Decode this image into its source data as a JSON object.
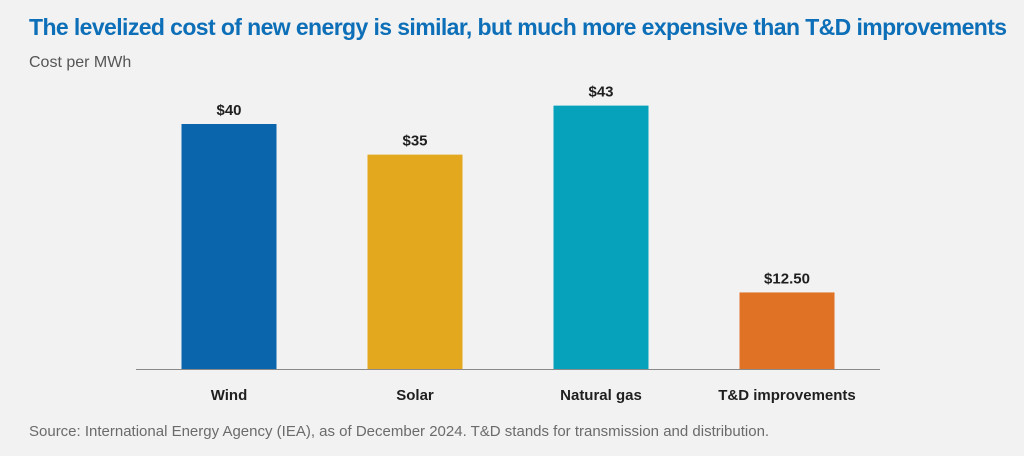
{
  "chart_data": {
    "type": "bar",
    "title": "The levelized cost of new energy is similar, but much more expensive than T&D improvements",
    "subtitle": "Cost per MWh",
    "categories": [
      "Wind",
      "Solar",
      "Natural gas",
      "T&D improvements"
    ],
    "values": [
      40,
      35,
      43,
      12.5
    ],
    "data_labels": [
      "$40",
      "$35",
      "$43",
      "$12.50"
    ],
    "colors": [
      "#0a65ad",
      "#e4a81e",
      "#06a2bb",
      "#e07225"
    ],
    "ylim": [
      0,
      48
    ],
    "grid": false,
    "legend": "none",
    "source": "Source: International Energy Agency (IEA), as of December 2024. T&D stands for transmission and distribution."
  }
}
